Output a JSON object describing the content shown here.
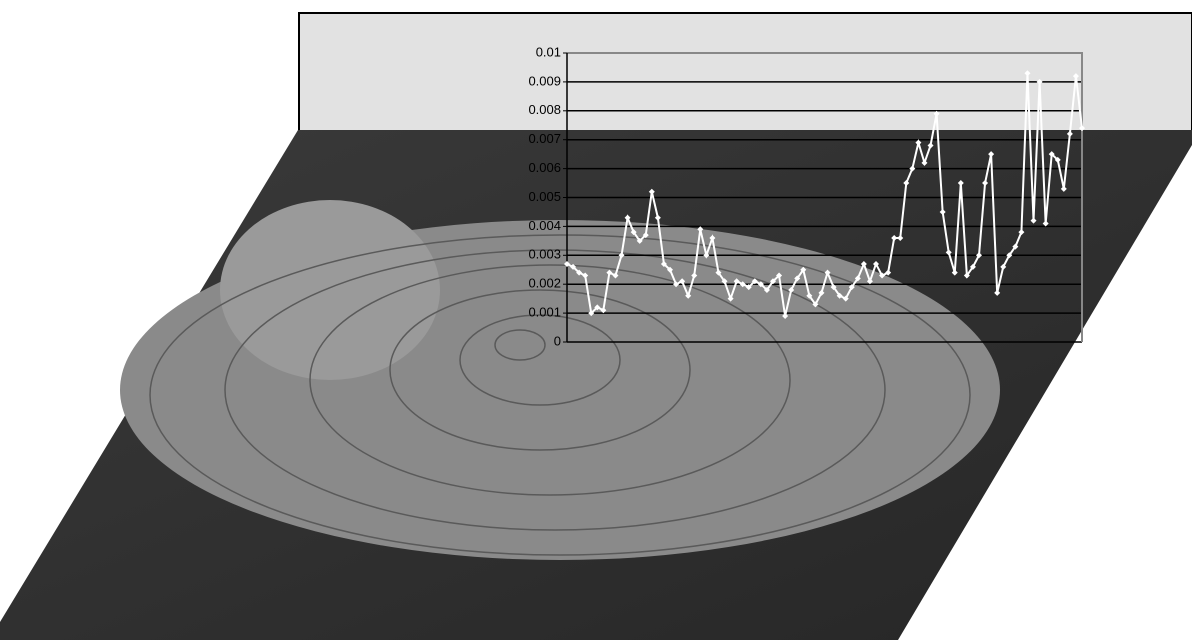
{
  "chart_data": {
    "type": "line",
    "categories": [
      null,
      null,
      null,
      null,
      null,
      null,
      null,
      null,
      null,
      null,
      null,
      null,
      null,
      null,
      null,
      null,
      null,
      null,
      null,
      null,
      null,
      null,
      null,
      null,
      null,
      null,
      null,
      null,
      null,
      null,
      null,
      null,
      null,
      null,
      null,
      null,
      null,
      null,
      null,
      null,
      null,
      null,
      null,
      null,
      null,
      null,
      null,
      null,
      null,
      null,
      null,
      null,
      null,
      null,
      null,
      null,
      null,
      null,
      null,
      null,
      null,
      null,
      null,
      null,
      null,
      null,
      null,
      null,
      null,
      null,
      null,
      null,
      null,
      null,
      null,
      null,
      null,
      null,
      null,
      null,
      null,
      null,
      null,
      null,
      null,
      null
    ],
    "values": [
      0.0027,
      0.0026,
      0.0024,
      0.0023,
      0.001,
      0.0012,
      0.0011,
      0.0024,
      0.0023,
      0.003,
      0.0043,
      0.0038,
      0.0035,
      0.0037,
      0.0052,
      0.0043,
      0.0027,
      0.0025,
      0.002,
      0.0021,
      0.0016,
      0.0023,
      0.0039,
      0.003,
      0.0036,
      0.0024,
      0.0021,
      0.0015,
      0.0021,
      0.002,
      0.0019,
      0.0021,
      0.002,
      0.0018,
      0.0021,
      0.0023,
      0.0009,
      0.0018,
      0.0022,
      0.0025,
      0.0016,
      0.0013,
      0.0017,
      0.0024,
      0.0019,
      0.0016,
      0.0015,
      0.0019,
      0.0022,
      0.0027,
      0.0021,
      0.0027,
      0.0023,
      0.0024,
      0.0036,
      0.0036,
      0.0055,
      0.006,
      0.0069,
      0.0062,
      0.0068,
      0.0079,
      0.0045,
      0.0031,
      0.0024,
      0.0055,
      0.0023,
      0.0026,
      0.003,
      0.0055,
      0.0065,
      0.0017,
      0.0026,
      0.003,
      0.0033,
      0.0038,
      0.0093,
      0.0042,
      0.009,
      0.0041,
      0.0065,
      0.0063,
      0.0053,
      0.0072,
      0.0092,
      0.0074
    ],
    "color": "#ffffff",
    "ylim": [
      0,
      0.01
    ],
    "yticks": [
      0,
      0.001,
      0.002,
      0.003,
      0.004,
      0.005,
      0.006,
      0.007,
      0.008,
      0.009,
      0.01
    ],
    "grid": true
  }
}
